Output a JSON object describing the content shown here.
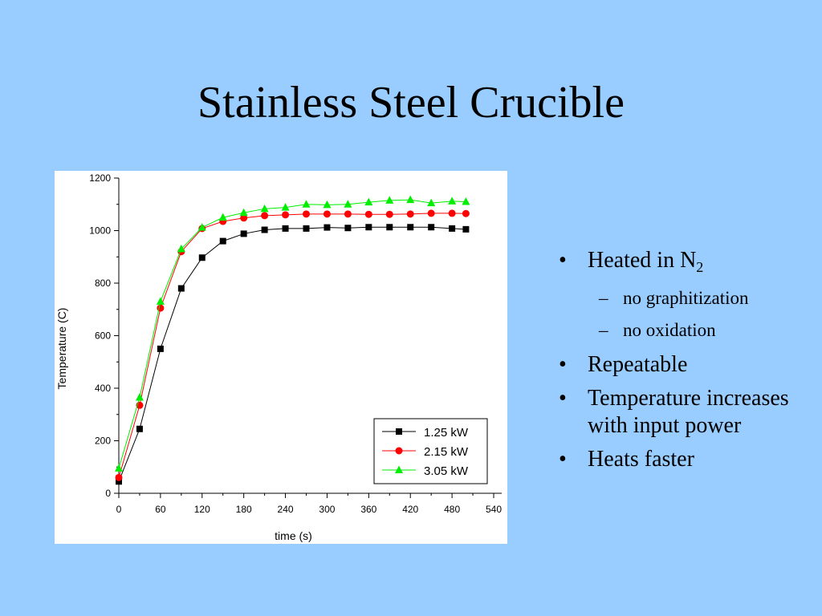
{
  "slide": {
    "title": "Stainless Steel Crucible",
    "bullets": [
      {
        "text": "Heated in N",
        "subscript": "2",
        "sub_items": [
          "no graphitization",
          "no oxidation"
        ]
      },
      {
        "text": "Repeatable"
      },
      {
        "text": "Temperature increases with input power"
      },
      {
        "text": "Heats faster"
      }
    ]
  },
  "chart_data": {
    "type": "line",
    "title": "",
    "xlabel": "time (s)",
    "ylabel": "Temperature (C)",
    "xlim": [
      0,
      540
    ],
    "ylim": [
      0,
      1200
    ],
    "xticks": [
      0,
      60,
      120,
      180,
      240,
      300,
      360,
      420,
      480,
      540
    ],
    "yticks": [
      0,
      200,
      400,
      600,
      800,
      1000,
      1200
    ],
    "grid": false,
    "legend": "bottom-right",
    "x": [
      0,
      30,
      60,
      90,
      120,
      150,
      180,
      210,
      240,
      270,
      300,
      330,
      360,
      390,
      420,
      450,
      480,
      500
    ],
    "series": [
      {
        "name": "1.25 kW",
        "color": "#000000",
        "marker": "square",
        "values": [
          45,
          245,
          550,
          780,
          897,
          960,
          988,
          1003,
          1008,
          1008,
          1012,
          1010,
          1013,
          1013,
          1013,
          1013,
          1008,
          1005
        ]
      },
      {
        "name": "2.15 kW",
        "color": "#ff0000",
        "marker": "circle",
        "values": [
          60,
          335,
          705,
          920,
          1008,
          1035,
          1048,
          1057,
          1060,
          1063,
          1063,
          1063,
          1062,
          1062,
          1063,
          1066,
          1066,
          1065
        ]
      },
      {
        "name": "3.05 kW",
        "color": "#00ee00",
        "marker": "triangle",
        "values": [
          95,
          365,
          730,
          930,
          1012,
          1050,
          1068,
          1083,
          1088,
          1100,
          1098,
          1100,
          1108,
          1115,
          1117,
          1105,
          1112,
          1110
        ]
      }
    ]
  }
}
